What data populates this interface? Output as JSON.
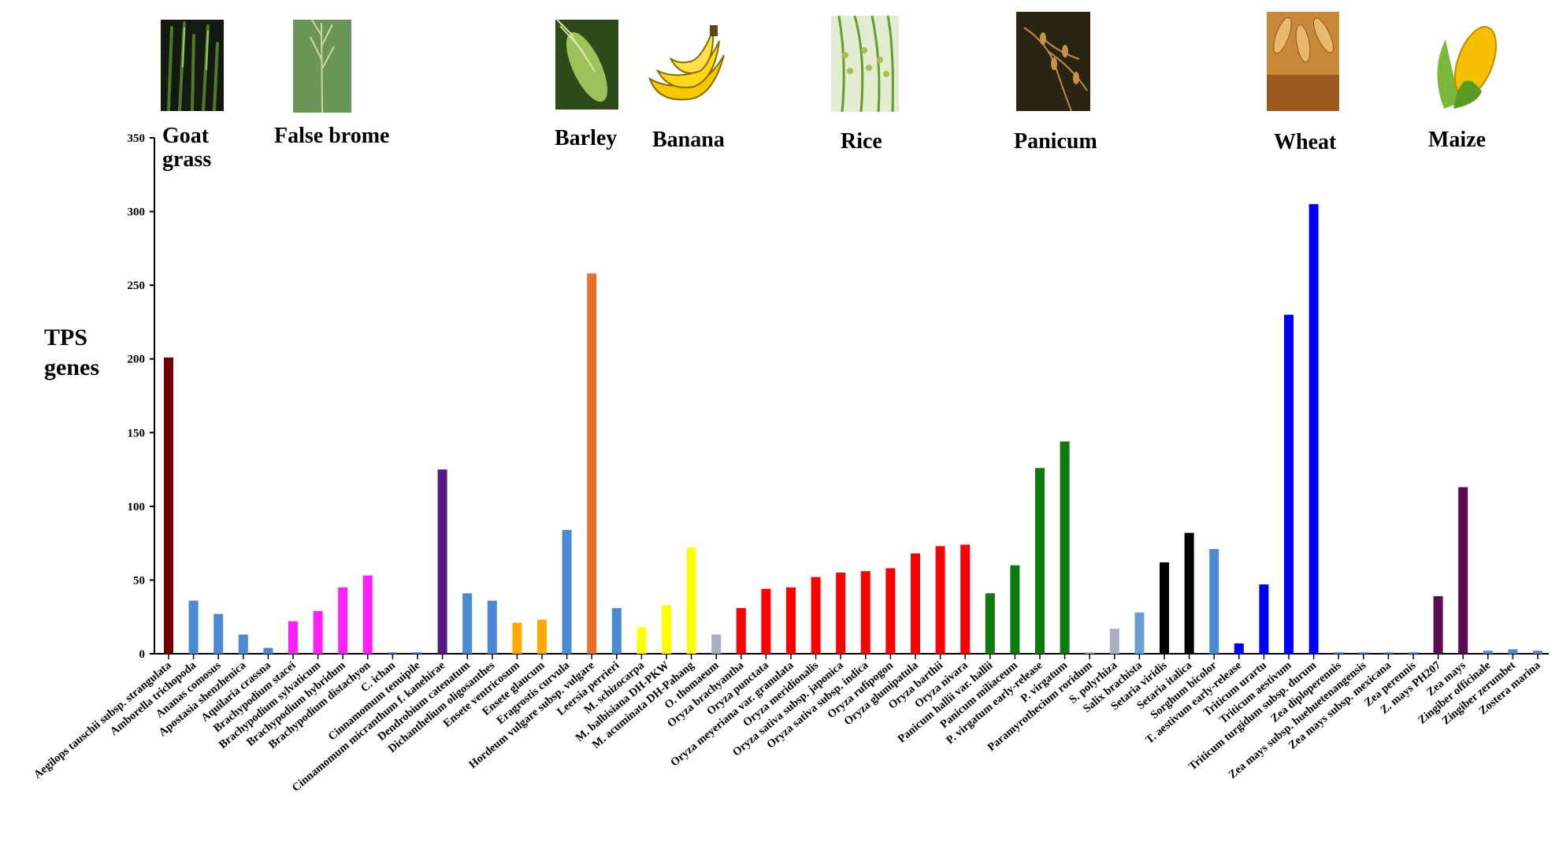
{
  "chart_data": {
    "type": "bar",
    "ylabel": "TPS\ngenes",
    "ylim": [
      0,
      350
    ],
    "yticks": [
      0,
      50,
      100,
      150,
      200,
      250,
      300,
      350
    ],
    "grid": false,
    "legend": "none",
    "categories": [
      "Aegilops tauschii subsp. strangulata",
      "Amborella trichopoda",
      "Ananas comosus",
      "Apostasia shenzhenica",
      "Aquilaria crassna",
      "Brachypodium stacei",
      "Brachypodium sylvaticum",
      "Brachypodium hybridum",
      "Brachypodium distachyon",
      "C. ichan",
      "Cinnamomum tenuipile",
      "Cinnamomum micranthum f. kanehirae",
      "Dendrobium catenatum",
      "Dichanthelium oligosanthes",
      "Ensete ventricosum",
      "Ensete glaucum",
      "Eragrostis curvula",
      "Hordeum vulgare subsp. vulgare",
      "Leersia perrieri",
      "M. schizocarpa",
      "M. balbisiana DH-PKW",
      "M. acuminata DH-Pahang",
      "O. thomaeum",
      "Oryza brachyantha",
      "Oryza punctata",
      "Oryza meyeriana var. granulata",
      "Oryza meridionalis",
      "Oryza sativa subsp. japonica",
      "Oryza sativa subsp. indica",
      "Oryza rufipogon",
      "Oryza glumipatula",
      "Oryza barthii",
      "Oryza nivara",
      "Panicum hallii var. hallii",
      "Panicum miliaceum",
      "P. virgatum early-release",
      "P. virgatum",
      "Paramyrothecium roridum",
      "S. polyrhiza",
      "Salix brachista",
      "Setaria viridis",
      "Setaria italica",
      "Sorghum bicolor",
      "T. aestivum early-release",
      "Triticum urartu",
      "Triticum aestivum",
      "Triticum turgidum subsp. durum",
      "Zea diploperennis",
      "Zea mays subsp. huehuetenangensis",
      "Zea mays subsp. mexicana",
      "Zea perennis",
      "Z. mays PH207",
      "Zea mays",
      "Zingiber officinale",
      "Zingiber zerumbet",
      "Zostera marina"
    ],
    "values": [
      201,
      36,
      27,
      13,
      4,
      22,
      29,
      45,
      53,
      1,
      1,
      125,
      41,
      36,
      21,
      23,
      84,
      258,
      31,
      18,
      33,
      72,
      13,
      31,
      44,
      45,
      52,
      55,
      56,
      58,
      68,
      73,
      74,
      41,
      60,
      126,
      144,
      1,
      17,
      28,
      62,
      82,
      71,
      7,
      47,
      230,
      305,
      1,
      1,
      1,
      1,
      39,
      113,
      2,
      3,
      2
    ],
    "colors": [
      "#720000",
      "#4a8ad4",
      "#4a8ad4",
      "#4a8ad4",
      "#4a8ad4",
      "#ff1fff",
      "#ff1fff",
      "#ff1fff",
      "#ff1fff",
      "#4a8ad4",
      "#4a8ad4",
      "#5a1a86",
      "#4a8ad4",
      "#4a8ad4",
      "#ffaa00",
      "#ffaa00",
      "#4a8ad4",
      "#e8702a",
      "#4a8ad4",
      "#ffff00",
      "#ffff00",
      "#ffff00",
      "#a8aec4",
      "#ff0000",
      "#ff0000",
      "#ff0000",
      "#ff0000",
      "#ff0000",
      "#ff0000",
      "#ff0000",
      "#ff0000",
      "#ff0000",
      "#ff0000",
      "#0c7a0c",
      "#0c7a0c",
      "#0c7a0c",
      "#0c7a0c",
      "#a8aec4",
      "#a8aec4",
      "#6a9fd4",
      "#000000",
      "#000000",
      "#4a8ad4",
      "#0000ff",
      "#0000ff",
      "#0000ff",
      "#0000ff",
      "#4a8ad4",
      "#4a8ad4",
      "#4a8ad4",
      "#4a8ad4",
      "#5c0a52",
      "#5c0a52",
      "#4a8ad4",
      "#4a8ad4",
      "#4a8ad4"
    ]
  },
  "groups": [
    {
      "label": "Goat\ngrass",
      "icon": "goat-grass-photo"
    },
    {
      "label": "False brome",
      "icon": "false-brome-photo"
    },
    {
      "label": "Barley",
      "icon": "barley-photo"
    },
    {
      "label": "Banana",
      "icon": "banana-photo"
    },
    {
      "label": "Rice",
      "icon": "rice-photo"
    },
    {
      "label": "Panicum",
      "icon": "panicum-photo"
    },
    {
      "label": "Wheat",
      "icon": "wheat-photo"
    },
    {
      "label": "Maize",
      "icon": "maize-photo"
    }
  ]
}
